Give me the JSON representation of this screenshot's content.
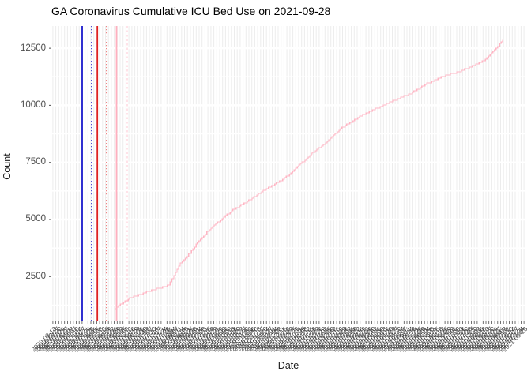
{
  "title": "GA Coronavirus Cumulative ICU Bed Use on 2021-09-28",
  "chart_data": {
    "type": "line",
    "title": "GA Coronavirus Cumulative ICU Bed Use on 2021-09-28",
    "xlabel": "Date",
    "ylabel": "Count",
    "ylim": [
      540,
      13470
    ],
    "y_ticks": [
      2500,
      5000,
      7500,
      10000,
      12500
    ],
    "y_minor_ticks": [
      1250,
      3750,
      6250,
      8750,
      11250
    ],
    "grid": {
      "vertical_line_count": 162,
      "vertical_color": "#ececec",
      "horizontal_color": "#ffffff"
    },
    "x_axis": {
      "start_date": "2020-03-13",
      "end_date": "2021-09-28",
      "tick_count": 162,
      "label_angle_deg": 45,
      "labels_overlap_illegibly": true
    },
    "series": [
      {
        "name": "cumulative-icu-bed-use",
        "color": "#ffb6c4",
        "points": [
          [
            0.135,
            1120
          ],
          [
            0.142,
            1220
          ],
          [
            0.167,
            1570
          ],
          [
            0.208,
            1880
          ],
          [
            0.247,
            2120
          ],
          [
            0.255,
            2430
          ],
          [
            0.265,
            2810
          ],
          [
            0.273,
            3120
          ],
          [
            0.292,
            3530
          ],
          [
            0.308,
            3980
          ],
          [
            0.33,
            4500
          ],
          [
            0.347,
            4810
          ],
          [
            0.383,
            5430
          ],
          [
            0.42,
            5880
          ],
          [
            0.458,
            6400
          ],
          [
            0.492,
            6810
          ],
          [
            0.525,
            7430
          ],
          [
            0.55,
            7910
          ],
          [
            0.575,
            8290
          ],
          [
            0.6,
            8780
          ],
          [
            0.613,
            9020
          ],
          [
            0.647,
            9470
          ],
          [
            0.68,
            9810
          ],
          [
            0.72,
            10190
          ],
          [
            0.758,
            10530
          ],
          [
            0.792,
            10950
          ],
          [
            0.825,
            11260
          ],
          [
            0.858,
            11470
          ],
          [
            0.892,
            11740
          ],
          [
            0.912,
            11980
          ],
          [
            0.928,
            12290
          ],
          [
            0.942,
            12600
          ],
          [
            0.953,
            12850
          ]
        ]
      }
    ],
    "marker_lines": [
      {
        "x": 0.065,
        "color": "#1a1acb",
        "style": "solid"
      },
      {
        "x": 0.085,
        "color": "#1a1acb",
        "style": "dotted"
      },
      {
        "x": 0.097,
        "color": "#e02020",
        "style": "solid"
      },
      {
        "x": 0.117,
        "color": "#e02020",
        "style": "dotted"
      },
      {
        "x": 0.1375,
        "color": "#ffb0bf",
        "style": "solid"
      },
      {
        "x": 0.16,
        "color": "#ffd9e0",
        "style": "dashed"
      }
    ],
    "legend": "none"
  }
}
